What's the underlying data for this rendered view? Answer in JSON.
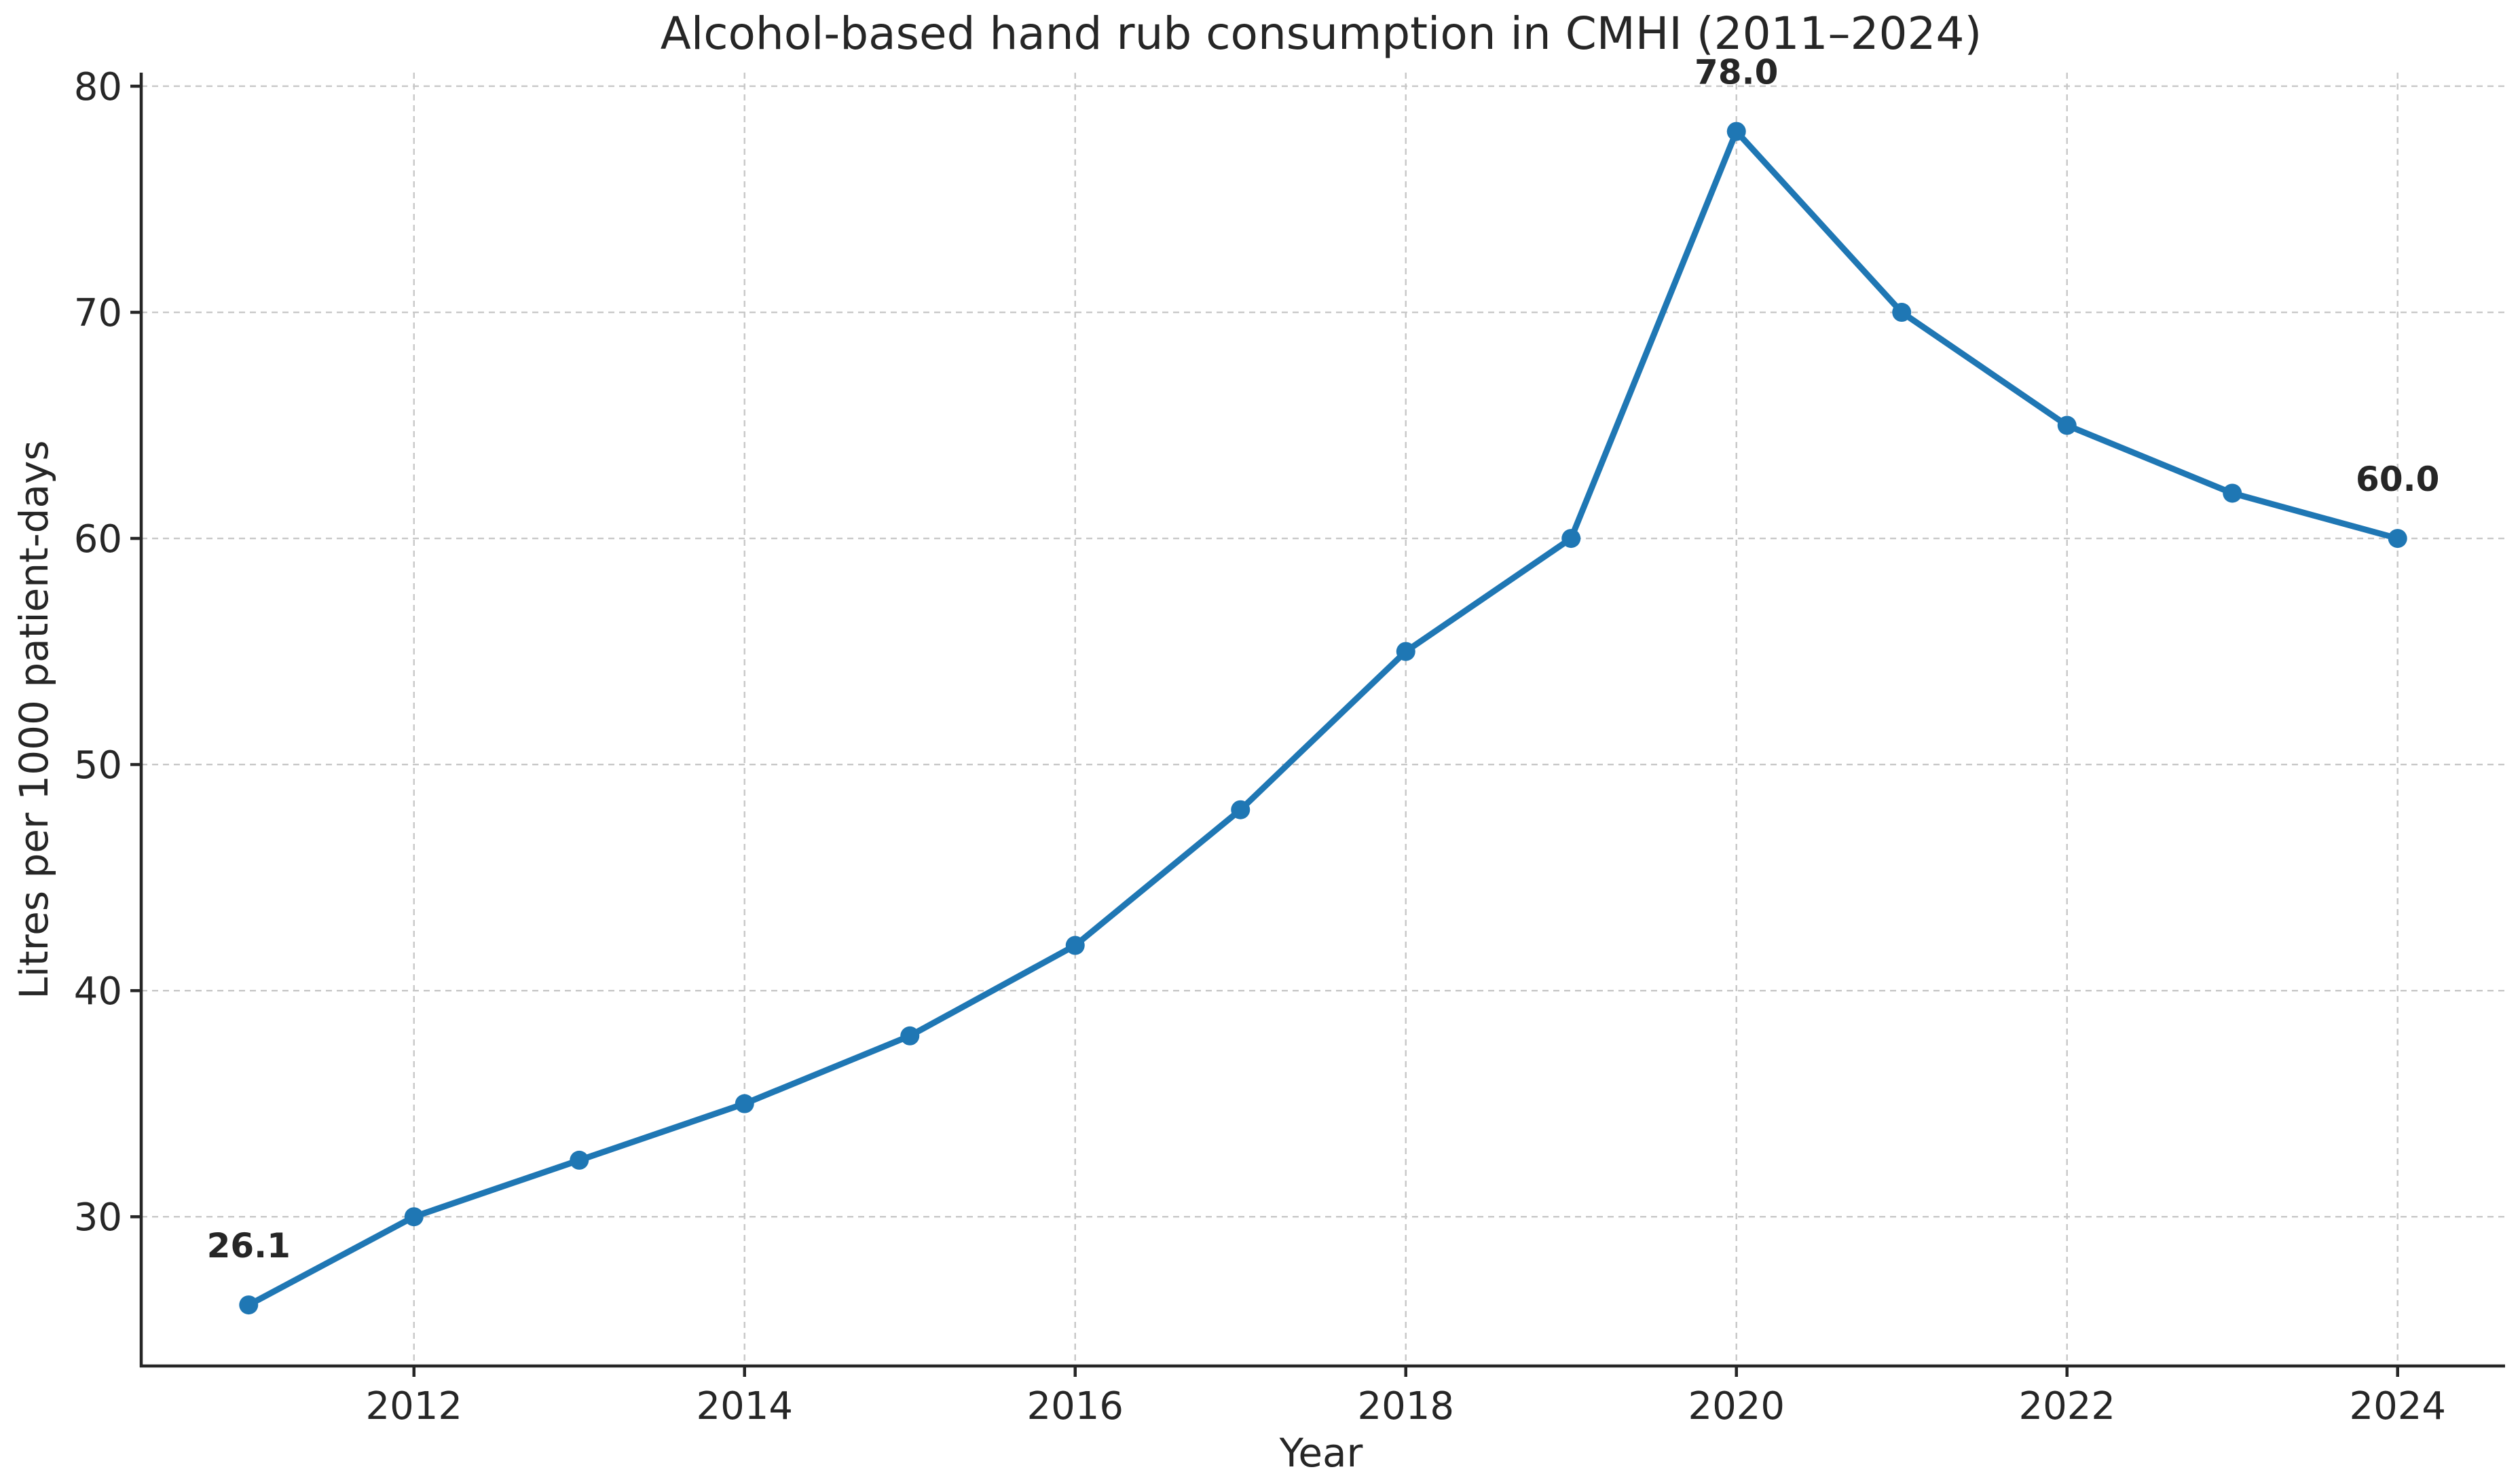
{
  "chart_data": {
    "type": "line",
    "title": "Alcohol-based hand rub consumption in CMHI (2011–2024)",
    "xlabel": "Year",
    "ylabel": "Litres per 1000 patient-days",
    "xlim": [
      2010.35,
      2024.65
    ],
    "ylim": [
      23.4,
      80.6
    ],
    "x_ticks": [
      2012,
      2014,
      2016,
      2018,
      2020,
      2022,
      2024
    ],
    "y_ticks": [
      30,
      40,
      50,
      60,
      70,
      80
    ],
    "grid": true,
    "series": [
      {
        "color": "#1f77b4",
        "x": [
          2011,
          2012,
          2013,
          2014,
          2015,
          2016,
          2017,
          2018,
          2019,
          2020,
          2021,
          2022,
          2023,
          2024
        ],
        "values": [
          26.1,
          30.0,
          32.5,
          35.0,
          38.0,
          42.0,
          48.0,
          55.0,
          60.0,
          78.0,
          70.0,
          65.0,
          62.0,
          60.0
        ]
      }
    ],
    "annotations": [
      {
        "x": 2011,
        "y": 26.1,
        "text": "26.1"
      },
      {
        "x": 2020,
        "y": 78.0,
        "text": "78.0"
      },
      {
        "x": 2024,
        "y": 60.0,
        "text": "60.0"
      }
    ]
  }
}
